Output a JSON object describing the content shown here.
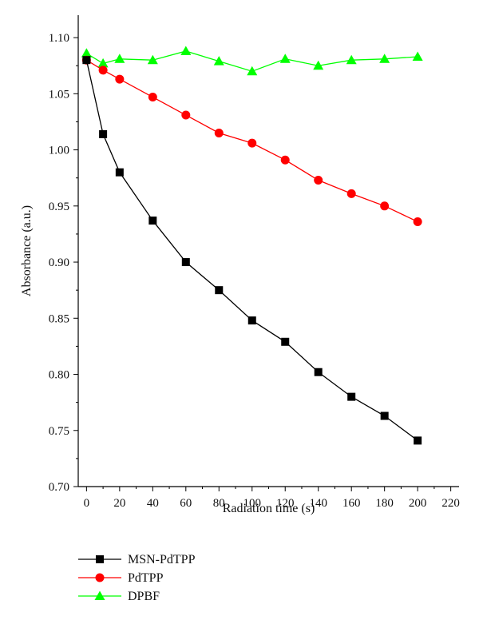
{
  "chart_data": {
    "type": "line",
    "title": "",
    "xlabel": "Radiation time (s)",
    "ylabel": "Absorbance (a.u.)",
    "xlim": [
      -5,
      225
    ],
    "ylim": [
      0.7,
      1.12
    ],
    "xticks": [
      0,
      20,
      40,
      60,
      80,
      100,
      120,
      140,
      160,
      180,
      200,
      220
    ],
    "xtick_labels": [
      "0",
      "20",
      "40",
      "60",
      "80",
      "100",
      "120",
      "140",
      "160",
      "180",
      "200",
      "220"
    ],
    "yticks": [
      0.7,
      0.75,
      0.8,
      0.85,
      0.9,
      0.95,
      1.0,
      1.05,
      1.1
    ],
    "ytick_labels": [
      "0.70",
      "0.75",
      "0.80",
      "0.85",
      "0.90",
      "0.95",
      "1.00",
      "1.05",
      "1.10"
    ],
    "grid": false,
    "legend_position": "bottom-left, below plot",
    "x": [
      0,
      10,
      20,
      40,
      60,
      80,
      100,
      120,
      140,
      160,
      180,
      200
    ],
    "series": [
      {
        "name": "MSN-PdTPP",
        "marker": "square",
        "color": "#000000",
        "values": [
          1.08,
          1.014,
          0.98,
          0.937,
          0.9,
          0.875,
          0.848,
          0.829,
          0.802,
          0.78,
          0.763,
          0.741
        ]
      },
      {
        "name": "PdTPP",
        "marker": "circle",
        "color": "#ff0000",
        "values": [
          1.08,
          1.071,
          1.063,
          1.047,
          1.031,
          1.015,
          1.006,
          0.991,
          0.973,
          0.961,
          0.95,
          0.936
        ]
      },
      {
        "name": "DPBF",
        "marker": "triangle",
        "color": "#00ff00",
        "values": [
          1.086,
          1.077,
          1.081,
          1.08,
          1.088,
          1.079,
          1.07,
          1.081,
          1.075,
          1.08,
          1.081,
          1.083
        ]
      }
    ]
  }
}
